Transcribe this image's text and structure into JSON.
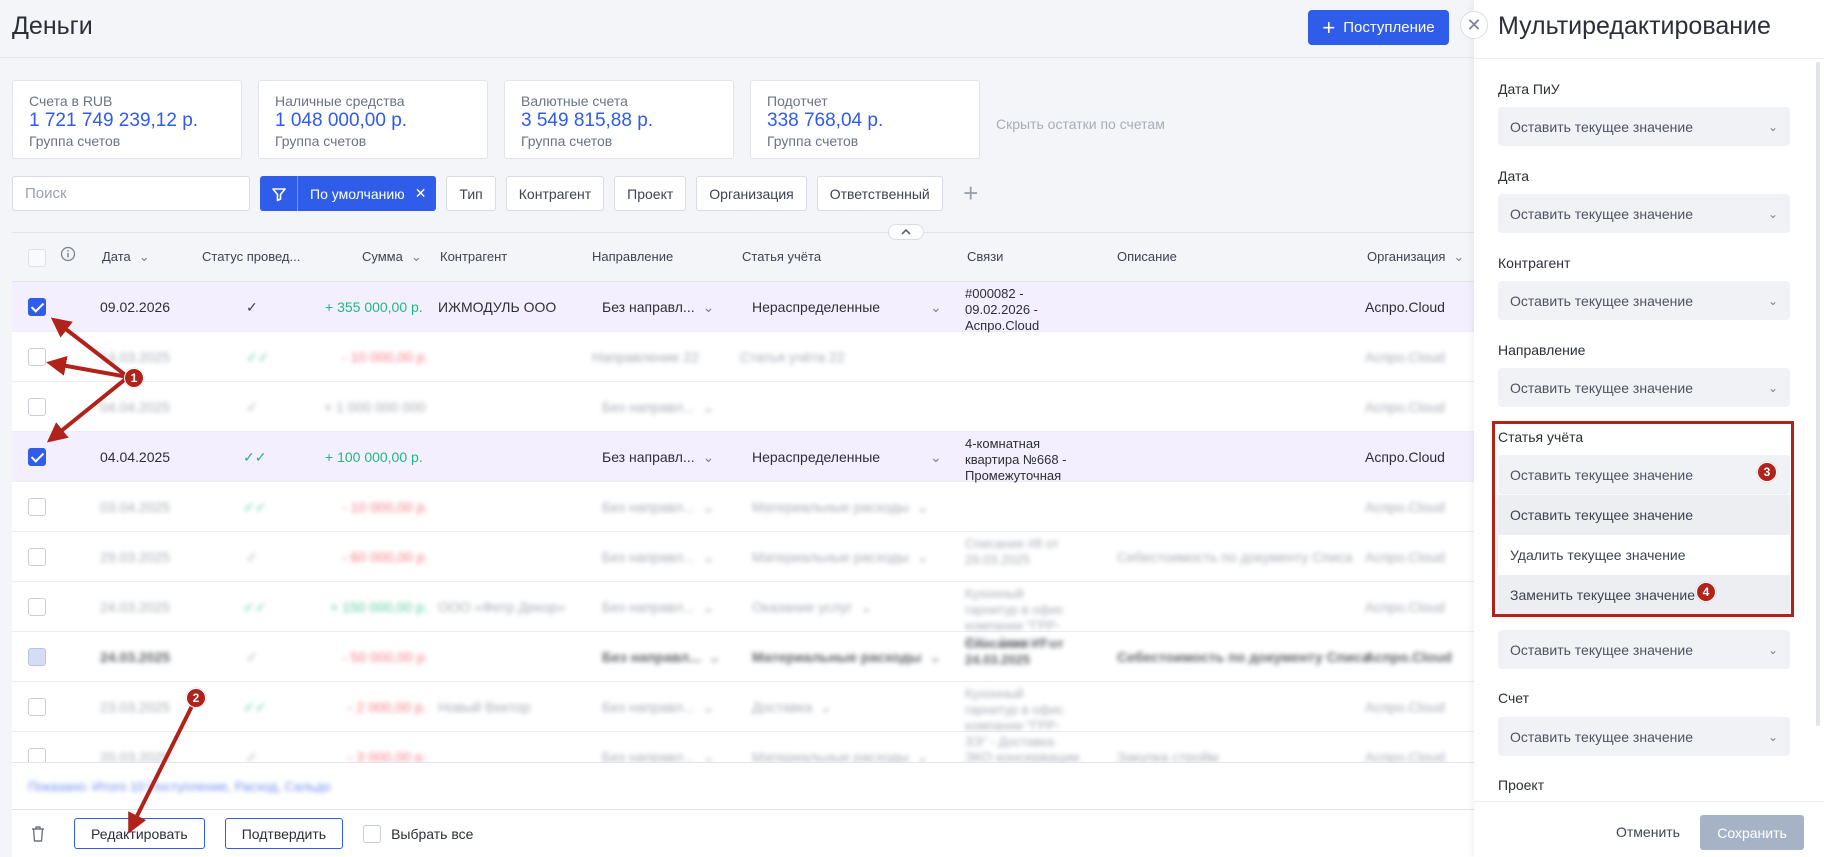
{
  "header": {
    "title": "Деньги",
    "income_button": "Поступление"
  },
  "summary_cards": [
    {
      "title": "Счета в RUB",
      "amount": "1 721 749 239,12 р.",
      "sub": "Группа счетов"
    },
    {
      "title": "Наличные средства",
      "amount": "1 048 000,00 р.",
      "sub": "Группа счетов"
    },
    {
      "title": "Валютные счета",
      "amount": "3 549 815,88 р.",
      "sub": "Группа счетов"
    },
    {
      "title": "Подотчет",
      "amount": "338 768,04 р.",
      "sub": "Группа счетов"
    }
  ],
  "hide_balances_link": "Скрыть остатки по счетам",
  "filters": {
    "search_placeholder": "Поиск",
    "preset_label": "По умолчанию",
    "chips": [
      "Тип",
      "Контрагент",
      "Проект",
      "Организация",
      "Ответственный"
    ]
  },
  "table": {
    "headers": {
      "date": "Дата",
      "status": "Статус провед...",
      "amount": "Сумма",
      "counterparty": "Контрагент",
      "direction": "Направление",
      "article": "Статья учёта",
      "links": "Связи",
      "description": "Описание",
      "organization": "Организация"
    },
    "rows": [
      {
        "date": "09.02.2026",
        "status": "✓",
        "amount": "+ 355 000,00 р.",
        "counterparty": "ИЖМОДУЛЬ ООО",
        "direction": "Без направл...",
        "article": "Нераспределенные",
        "links": "#000082 - 09.02.2026 - Аспро.Cloud",
        "description": "",
        "organization": "Аспро.Cloud"
      },
      {
        "date": "14.03.2025",
        "status": "✓✓",
        "amount": "- 10 000,00 р.",
        "counterparty": "",
        "direction": "Направление 22",
        "article": "Статья учёта 22",
        "links": "",
        "description": "",
        "organization": "Аспро.Cloud"
      },
      {
        "date": "04.04.2025",
        "status": "✓",
        "amount": "+ 1 000 000 000",
        "counterparty": "",
        "direction": "Без направл...",
        "article": "",
        "links": "",
        "description": "",
        "organization": "Аспро.Cloud"
      },
      {
        "date": "04.04.2025",
        "status": "✓✓",
        "amount": "+ 100 000,00 р.",
        "counterparty": "",
        "direction": "Без направл...",
        "article": "Нераспределенные",
        "links": "4-комнатная квартира №668 - Промежуточная",
        "description": "",
        "organization": "Аспро.Cloud"
      },
      {
        "date": "03.04.2025",
        "status": "✓✓",
        "amount": "- 10 000,00 р.",
        "counterparty": "",
        "direction": "Без направл...",
        "article": "Материальные расходы",
        "links": "",
        "description": "",
        "organization": "Аспро.Cloud"
      },
      {
        "date": "29.03.2025",
        "status": "✓",
        "amount": "- 60 000,00 р.",
        "counterparty": "",
        "direction": "Без направл...",
        "article": "Материальные расходы",
        "links": "Списание #8 от 29.03.2025",
        "description": "Себестоимость по документу Списа",
        "organization": "Аспро.Cloud"
      },
      {
        "date": "24.03.2025",
        "status": "✓✓",
        "amount": "+ 150 000,00 р.",
        "counterparty": "ООО «Фетр Декор»",
        "direction": "Без направл...",
        "article": "Оказание услуг",
        "links": "Кухонный гарнитур в офис компании \"ГРР-ЗЭ\" - Заказ на",
        "description": "",
        "organization": "Аспро.Cloud"
      },
      {
        "date": "24.03.2025",
        "status": "✓",
        "amount": "- 50 000,00 р.",
        "counterparty": "",
        "direction": "Без направл...",
        "article": "Материальные расходы",
        "links": "Списание #7 от 24.03.2025",
        "description": "Себестоимость по документу Списа",
        "organization": "Аспро.Cloud"
      },
      {
        "date": "23.03.2025",
        "status": "✓✓",
        "amount": "- 2 000,00 р.",
        "counterparty": "Новый Вектор",
        "direction": "Без направл...",
        "article": "Доставка",
        "links": "Кухонный гарнитур в офис компании \"ГРР-ЗЭ\" - Доставка",
        "description": "",
        "organization": "Аспро.Cloud"
      },
      {
        "date": "20.03.2025",
        "status": "✓",
        "amount": "- 3 000,00 р.",
        "counterparty": "",
        "direction": "Без направл...",
        "article": "Материальные расходы",
        "links": "ЗКО консервации",
        "description": "Закупка стройм",
        "organization": "Аспро.Cloud"
      }
    ],
    "footer_summary": "Показано: Итого 10 Поступление, Расход, Сальдо"
  },
  "footer": {
    "edit_button": "Редактировать",
    "confirm_button": "Подтвердить",
    "select_all": "Выбрать все"
  },
  "panel": {
    "title": "Мультиредактирование",
    "fields": [
      {
        "label": "Дата ПиУ",
        "value": "Оставить текущее значение"
      },
      {
        "label": "Дата",
        "value": "Оставить текущее значение"
      },
      {
        "label": "Контрагент",
        "value": "Оставить текущее значение"
      },
      {
        "label": "Направление",
        "value": "Оставить текущее значение"
      },
      {
        "label": "Статья учёта",
        "value": "Оставить текущее значение"
      },
      {
        "label": "",
        "value": "Оставить текущее значение"
      },
      {
        "label": "Счет",
        "value": "Оставить текущее значение"
      },
      {
        "label": "Проект",
        "value": ""
      }
    ],
    "dropdown_options": [
      "Оставить текущее значение",
      "Удалить текущее значение",
      "Заменить текущее значение"
    ],
    "cancel": "Отменить",
    "save": "Сохранить"
  },
  "annotations": {
    "badges": [
      "1",
      "2",
      "3",
      "4"
    ]
  },
  "colors": {
    "accent": "#2f5ce8",
    "positive": "#20b97d",
    "negative": "#ef4d5c",
    "annotation": "#b0221a",
    "selected_row": "#f4efff"
  }
}
